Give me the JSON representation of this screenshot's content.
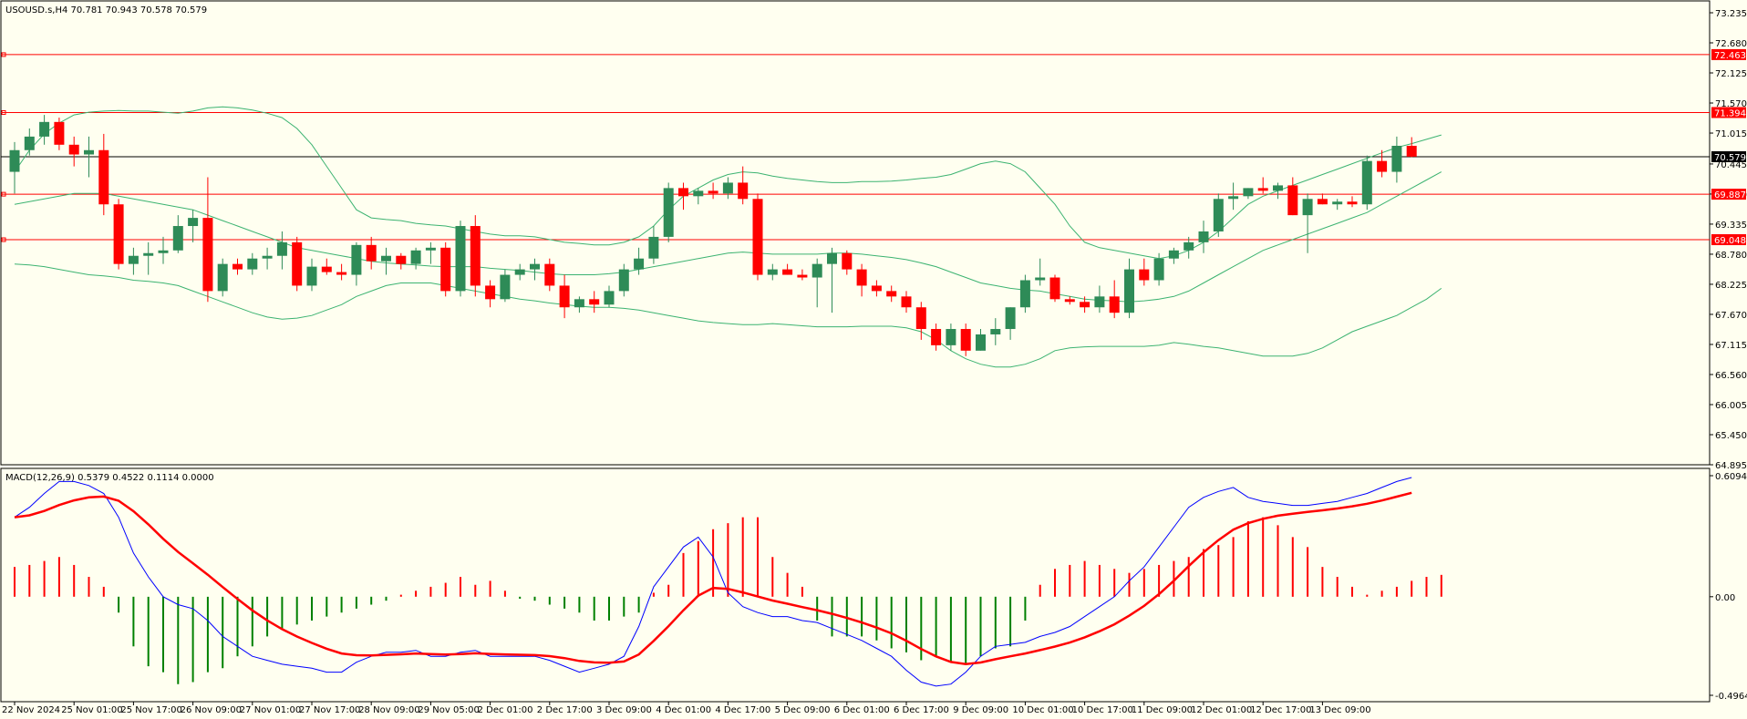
{
  "chart_data": [
    {
      "type": "candlestick",
      "title": "USOUSD.s,H4",
      "ohlc_header": [
        "70.781",
        "70.943",
        "70.578",
        "70.579"
      ],
      "last_price": 70.579,
      "ylim": [
        64.895,
        73.235
      ],
      "y_ticks": [
        "73.235",
        "72.680",
        "72.125",
        "71.570",
        "71.015",
        "70.445",
        "69.890",
        "69.335",
        "68.780",
        "68.225",
        "67.670",
        "67.115",
        "66.560",
        "66.005",
        "65.450",
        "64.895"
      ],
      "levels": [
        {
          "value": 72.463,
          "label": "72.463",
          "color": "#ff0000"
        },
        {
          "value": 71.394,
          "label": "71.394",
          "color": "#ff0000"
        },
        {
          "value": 69.887,
          "label": "69.887",
          "color": "#ff0000"
        },
        {
          "value": 69.048,
          "label": "69.048",
          "color": "#ff0000"
        }
      ],
      "price_label": "70.579",
      "colors": {
        "bull": "#2e8b57",
        "bear": "#ff0000",
        "bands": "#3cb371"
      },
      "candles": [
        [
          70.3,
          70.85,
          69.9,
          70.7
        ],
        [
          70.7,
          71.1,
          70.6,
          70.95
        ],
        [
          70.95,
          71.35,
          70.8,
          71.22
        ],
        [
          71.22,
          71.3,
          70.7,
          70.8
        ],
        [
          70.8,
          70.95,
          70.4,
          70.62
        ],
        [
          70.62,
          70.95,
          70.2,
          70.7
        ],
        [
          70.7,
          71.0,
          69.5,
          69.7
        ],
        [
          69.7,
          69.8,
          68.5,
          68.6
        ],
        [
          68.6,
          68.9,
          68.4,
          68.75
        ],
        [
          68.75,
          69.0,
          68.4,
          68.8
        ],
        [
          68.8,
          69.1,
          68.6,
          68.85
        ],
        [
          68.85,
          69.5,
          68.8,
          69.3
        ],
        [
          69.3,
          69.6,
          69.0,
          69.45
        ],
        [
          69.45,
          70.2,
          67.9,
          68.1
        ],
        [
          68.1,
          68.7,
          68.0,
          68.6
        ],
        [
          68.6,
          68.7,
          68.4,
          68.5
        ],
        [
          68.5,
          68.8,
          68.4,
          68.7
        ],
        [
          68.7,
          68.9,
          68.5,
          68.75
        ],
        [
          68.75,
          69.2,
          68.5,
          69.0
        ],
        [
          69.0,
          69.1,
          68.1,
          68.2
        ],
        [
          68.2,
          68.7,
          68.1,
          68.55
        ],
        [
          68.55,
          68.7,
          68.4,
          68.45
        ],
        [
          68.45,
          68.6,
          68.3,
          68.4
        ],
        [
          68.4,
          69.0,
          68.2,
          68.95
        ],
        [
          68.95,
          69.1,
          68.5,
          68.65
        ],
        [
          68.65,
          68.9,
          68.4,
          68.75
        ],
        [
          68.75,
          68.8,
          68.5,
          68.6
        ],
        [
          68.6,
          68.9,
          68.5,
          68.85
        ],
        [
          68.85,
          69.0,
          68.6,
          68.9
        ],
        [
          68.9,
          69.0,
          68.0,
          68.1
        ],
        [
          68.1,
          69.4,
          68.0,
          69.3
        ],
        [
          69.3,
          69.5,
          68.0,
          68.2
        ],
        [
          68.2,
          68.3,
          67.8,
          67.95
        ],
        [
          67.95,
          68.5,
          67.9,
          68.4
        ],
        [
          68.4,
          68.6,
          68.3,
          68.5
        ],
        [
          68.5,
          68.7,
          68.3,
          68.6
        ],
        [
          68.6,
          68.7,
          68.1,
          68.2
        ],
        [
          68.2,
          68.4,
          67.6,
          67.8
        ],
        [
          67.8,
          68.0,
          67.7,
          67.95
        ],
        [
          67.95,
          68.1,
          67.7,
          67.85
        ],
        [
          67.85,
          68.2,
          67.8,
          68.1
        ],
        [
          68.1,
          68.6,
          68.0,
          68.5
        ],
        [
          68.5,
          68.9,
          68.4,
          68.7
        ],
        [
          68.7,
          69.3,
          68.6,
          69.1
        ],
        [
          69.1,
          70.1,
          69.0,
          70.0
        ],
        [
          70.0,
          70.1,
          69.6,
          69.85
        ],
        [
          69.85,
          70.0,
          69.7,
          69.95
        ],
        [
          69.95,
          70.1,
          69.8,
          69.9
        ],
        [
          69.9,
          70.2,
          69.8,
          70.1
        ],
        [
          70.1,
          70.4,
          69.7,
          69.8
        ],
        [
          69.8,
          69.9,
          68.3,
          68.4
        ],
        [
          68.4,
          68.6,
          68.3,
          68.5
        ],
        [
          68.5,
          68.6,
          68.4,
          68.4
        ],
        [
          68.4,
          68.5,
          68.3,
          68.35
        ],
        [
          68.35,
          68.7,
          67.8,
          68.6
        ],
        [
          68.6,
          68.9,
          67.7,
          68.8
        ],
        [
          68.8,
          68.85,
          68.4,
          68.5
        ],
        [
          68.5,
          68.6,
          68.0,
          68.2
        ],
        [
          68.2,
          68.3,
          68.0,
          68.1
        ],
        [
          68.1,
          68.2,
          67.9,
          68.0
        ],
        [
          68.0,
          68.1,
          67.7,
          67.8
        ],
        [
          67.8,
          67.9,
          67.2,
          67.4
        ],
        [
          67.4,
          67.5,
          67.0,
          67.1
        ],
        [
          67.1,
          67.5,
          67.0,
          67.4
        ],
        [
          67.4,
          67.5,
          66.9,
          67.0
        ],
        [
          67.0,
          67.4,
          67.0,
          67.3
        ],
        [
          67.3,
          67.6,
          67.1,
          67.4
        ],
        [
          67.4,
          67.8,
          67.2,
          67.8
        ],
        [
          67.8,
          68.4,
          67.7,
          68.3
        ],
        [
          68.3,
          68.7,
          68.2,
          68.35
        ],
        [
          68.35,
          68.4,
          67.9,
          67.95
        ],
        [
          67.95,
          68.0,
          67.85,
          67.9
        ],
        [
          67.9,
          68.0,
          67.7,
          67.8
        ],
        [
          67.8,
          68.2,
          67.7,
          68.0
        ],
        [
          68.0,
          68.3,
          67.6,
          67.7
        ],
        [
          67.7,
          68.7,
          67.6,
          68.5
        ],
        [
          68.5,
          68.7,
          68.2,
          68.3
        ],
        [
          68.3,
          68.8,
          68.2,
          68.7
        ],
        [
          68.7,
          68.9,
          68.6,
          68.85
        ],
        [
          68.85,
          69.1,
          68.7,
          69.0
        ],
        [
          69.0,
          69.4,
          68.8,
          69.2
        ],
        [
          69.2,
          69.9,
          69.1,
          69.8
        ],
        [
          69.8,
          70.1,
          69.6,
          69.85
        ],
        [
          69.85,
          70.0,
          69.8,
          70.0
        ],
        [
          70.0,
          70.2,
          69.9,
          69.95
        ],
        [
          69.95,
          70.1,
          69.8,
          70.05
        ],
        [
          70.05,
          70.2,
          69.5,
          69.5
        ],
        [
          69.5,
          69.9,
          68.8,
          69.8
        ],
        [
          69.8,
          69.9,
          69.7,
          69.7
        ],
        [
          69.7,
          69.8,
          69.6,
          69.75
        ],
        [
          69.75,
          69.85,
          69.65,
          69.7
        ],
        [
          69.7,
          70.6,
          69.6,
          70.5
        ],
        [
          70.5,
          70.7,
          70.2,
          70.3
        ],
        [
          70.3,
          70.95,
          70.1,
          70.78
        ],
        [
          70.78,
          70.94,
          70.57,
          70.58
        ]
      ],
      "bands_upper": [
        70.3,
        70.7,
        71.0,
        71.2,
        71.35,
        71.4,
        71.42,
        71.43,
        71.42,
        71.42,
        71.4,
        71.38,
        71.42,
        71.48,
        71.5,
        71.48,
        71.44,
        71.38,
        71.3,
        71.1,
        70.8,
        70.4,
        70.0,
        69.6,
        69.45,
        69.42,
        69.4,
        69.35,
        69.32,
        69.3,
        69.25,
        69.2,
        69.15,
        69.12,
        69.12,
        69.1,
        69.05,
        69.0,
        68.98,
        68.95,
        68.95,
        69.0,
        69.1,
        69.3,
        69.6,
        69.85,
        70.0,
        70.15,
        70.25,
        70.3,
        70.28,
        70.22,
        70.18,
        70.15,
        70.12,
        70.1,
        70.1,
        70.12,
        70.12,
        70.13,
        70.15,
        70.18,
        70.2,
        70.25,
        70.35,
        70.45,
        70.5,
        70.45,
        70.3,
        70.0,
        69.7,
        69.3,
        69.0,
        68.9,
        68.85,
        68.8,
        68.75,
        68.7,
        68.75,
        68.85,
        69.0,
        69.2,
        69.45,
        69.7,
        69.85,
        69.95,
        70.05,
        70.15,
        70.25,
        70.35,
        70.45,
        70.55,
        70.65,
        70.75,
        70.82,
        70.9,
        70.98
      ],
      "bands_middle": [
        69.7,
        69.75,
        69.8,
        69.85,
        69.9,
        69.9,
        69.9,
        69.85,
        69.8,
        69.75,
        69.7,
        69.65,
        69.6,
        69.5,
        69.4,
        69.3,
        69.2,
        69.1,
        69.0,
        68.9,
        68.85,
        68.8,
        68.75,
        68.7,
        68.65,
        68.62,
        68.6,
        68.58,
        68.56,
        68.55,
        68.55,
        68.55,
        68.52,
        68.5,
        68.48,
        68.45,
        68.42,
        68.4,
        68.4,
        68.4,
        68.42,
        68.45,
        68.5,
        68.55,
        68.6,
        68.65,
        68.7,
        68.75,
        68.8,
        68.82,
        68.8,
        68.78,
        68.78,
        68.78,
        68.78,
        68.8,
        68.8,
        68.78,
        68.75,
        68.72,
        68.68,
        68.62,
        68.55,
        68.45,
        68.35,
        68.25,
        68.2,
        68.15,
        68.12,
        68.1,
        68.05,
        68.0,
        67.95,
        67.93,
        67.92,
        67.9,
        67.92,
        67.95,
        68.0,
        68.1,
        68.25,
        68.4,
        68.55,
        68.7,
        68.85,
        68.95,
        69.05,
        69.15,
        69.25,
        69.35,
        69.45,
        69.55,
        69.7,
        69.85,
        70.0,
        70.15,
        70.3
      ],
      "bands_lower": [
        68.6,
        68.58,
        68.55,
        68.5,
        68.45,
        68.4,
        68.38,
        68.35,
        68.3,
        68.28,
        68.25,
        68.2,
        68.1,
        68.0,
        67.9,
        67.8,
        67.7,
        67.62,
        67.58,
        67.6,
        67.65,
        67.75,
        67.85,
        68.0,
        68.1,
        68.2,
        68.25,
        68.25,
        68.25,
        68.2,
        68.15,
        68.1,
        68.05,
        68.0,
        67.95,
        67.92,
        67.88,
        67.85,
        67.82,
        67.8,
        67.8,
        67.78,
        67.75,
        67.7,
        67.65,
        67.6,
        67.55,
        67.52,
        67.5,
        67.48,
        67.48,
        67.5,
        67.48,
        67.46,
        67.44,
        67.44,
        67.44,
        67.45,
        67.45,
        67.45,
        67.42,
        67.35,
        67.2,
        67.0,
        66.85,
        66.75,
        66.7,
        66.7,
        66.75,
        66.85,
        67.0,
        67.05,
        67.07,
        67.08,
        67.08,
        67.08,
        67.08,
        67.1,
        67.15,
        67.12,
        67.08,
        67.05,
        67.0,
        66.95,
        66.9,
        66.9,
        66.9,
        66.95,
        67.05,
        67.2,
        67.35,
        67.45,
        67.55,
        67.65,
        67.8,
        67.95,
        68.15
      ]
    },
    {
      "type": "macd",
      "title": "MACD(12,26,9) 0.5379 0.4522 0.1114 0.0000",
      "ylim": [
        -0.4964,
        0.6094
      ],
      "y_ticks": [
        "0.6094",
        "0.00",
        "-0.4964"
      ],
      "colors": {
        "hist_pos": "#ff0000",
        "hist_neg": "#008000",
        "macd": "#0000ff",
        "signal": "#ff0000"
      },
      "histogram": [
        0.15,
        0.16,
        0.18,
        0.2,
        0.16,
        0.1,
        0.05,
        -0.08,
        -0.25,
        -0.35,
        -0.38,
        -0.44,
        -0.43,
        -0.38,
        -0.36,
        -0.3,
        -0.25,
        -0.2,
        -0.16,
        -0.14,
        -0.12,
        -0.1,
        -0.08,
        -0.06,
        -0.04,
        -0.02,
        0.01,
        0.03,
        0.05,
        0.07,
        0.1,
        0.06,
        0.08,
        0.03,
        -0.01,
        -0.02,
        -0.04,
        -0.06,
        -0.08,
        -0.12,
        -0.12,
        -0.1,
        -0.08,
        0.02,
        0.06,
        0.22,
        0.28,
        0.34,
        0.37,
        0.4,
        0.4,
        0.2,
        0.12,
        0.05,
        -0.12,
        -0.2,
        -0.2,
        -0.2,
        -0.22,
        -0.26,
        -0.28,
        -0.32,
        -0.3,
        -0.33,
        -0.34,
        -0.3,
        -0.26,
        -0.25,
        -0.12,
        0.06,
        0.14,
        0.16,
        0.18,
        0.16,
        0.14,
        0.12,
        0.14,
        0.16,
        0.18,
        0.2,
        0.24,
        0.26,
        0.3,
        0.38,
        0.4,
        0.36,
        0.3,
        0.25,
        0.15,
        0.1,
        0.05,
        0.01,
        0.03,
        0.05,
        0.08,
        0.1,
        0.11
      ],
      "macd": [
        0.4,
        0.45,
        0.52,
        0.58,
        0.58,
        0.56,
        0.52,
        0.4,
        0.22,
        0.1,
        0.0,
        -0.04,
        -0.06,
        -0.12,
        -0.2,
        -0.25,
        -0.3,
        -0.32,
        -0.34,
        -0.35,
        -0.36,
        -0.38,
        -0.38,
        -0.33,
        -0.3,
        -0.28,
        -0.28,
        -0.27,
        -0.3,
        -0.3,
        -0.28,
        -0.27,
        -0.3,
        -0.3,
        -0.3,
        -0.3,
        -0.32,
        -0.35,
        -0.38,
        -0.36,
        -0.34,
        -0.3,
        -0.15,
        0.05,
        0.15,
        0.25,
        0.3,
        0.2,
        0.02,
        -0.05,
        -0.08,
        -0.1,
        -0.1,
        -0.12,
        -0.13,
        -0.16,
        -0.19,
        -0.22,
        -0.26,
        -0.3,
        -0.37,
        -0.43,
        -0.45,
        -0.44,
        -0.38,
        -0.3,
        -0.25,
        -0.24,
        -0.23,
        -0.2,
        -0.18,
        -0.15,
        -0.1,
        -0.05,
        0.0,
        0.08,
        0.15,
        0.25,
        0.35,
        0.45,
        0.5,
        0.53,
        0.55,
        0.5,
        0.48,
        0.47,
        0.46,
        0.46,
        0.47,
        0.48,
        0.5,
        0.52,
        0.55,
        0.58,
        0.6
      ]
    }
  ],
  "x_labels": [
    {
      "i": 0,
      "t": "22 Nov 2024"
    },
    {
      "i": 4,
      "t": "25 Nov 01:00"
    },
    {
      "i": 8,
      "t": "25 Nov 17:00"
    },
    {
      "i": 12,
      "t": "26 Nov 09:00"
    },
    {
      "i": 16,
      "t": "27 Nov 01:00"
    },
    {
      "i": 20,
      "t": "27 Nov 17:00"
    },
    {
      "i": 24,
      "t": "28 Nov 09:00"
    },
    {
      "i": 28,
      "t": "29 Nov 05:00"
    },
    {
      "i": 32,
      "t": "2 Dec 01:00"
    },
    {
      "i": 36,
      "t": "2 Dec 17:00"
    },
    {
      "i": 40,
      "t": "3 Dec 09:00"
    },
    {
      "i": 44,
      "t": "4 Dec 01:00"
    },
    {
      "i": 48,
      "t": "4 Dec 17:00"
    },
    {
      "i": 52,
      "t": "5 Dec 09:00"
    },
    {
      "i": 56,
      "t": "6 Dec 01:00"
    },
    {
      "i": 60,
      "t": "6 Dec 17:00"
    },
    {
      "i": 64,
      "t": "9 Dec 09:00"
    },
    {
      "i": 68,
      "t": "10 Dec 01:00"
    },
    {
      "i": 72,
      "t": "10 Dec 17:00"
    },
    {
      "i": 76,
      "t": "11 Dec 09:00"
    },
    {
      "i": 80,
      "t": "12 Dec 01:00"
    },
    {
      "i": 84,
      "t": "12 Dec 17:00"
    },
    {
      "i": 88,
      "t": "13 Dec 09:00"
    }
  ]
}
